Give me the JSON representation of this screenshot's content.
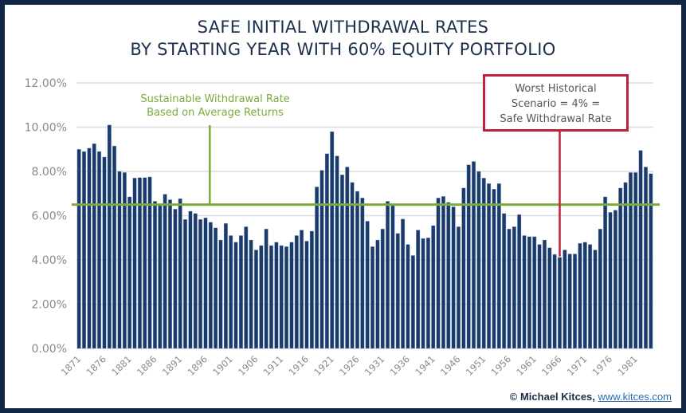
{
  "chart_data": {
    "type": "bar",
    "title": "SAFE INITIAL WITHDRAWAL RATES",
    "subtitle": "BY STARTING YEAR WITH 60% EQUITY PORTFOLIO",
    "xlabel": "",
    "ylabel": "",
    "ylim": [
      0,
      12
    ],
    "yticks": [
      0,
      2,
      4,
      6,
      8,
      10,
      12
    ],
    "ytick_labels": [
      "0.00%",
      "2.00%",
      "4.00%",
      "6.00%",
      "8.00%",
      "10.00%",
      "12.00%"
    ],
    "grid": true,
    "x_start": 1871,
    "xtick_labels": [
      "1871",
      "1876",
      "1881",
      "1886",
      "1891",
      "1896",
      "1901",
      "1906",
      "1911",
      "1916",
      "1921",
      "1926",
      "1931",
      "1936",
      "1941",
      "1946",
      "1951",
      "1956",
      "1961",
      "1966",
      "1971",
      "1976",
      "1981"
    ],
    "values": [
      9.0,
      8.9,
      9.05,
      9.25,
      8.9,
      8.65,
      10.1,
      9.15,
      8.0,
      7.95,
      6.85,
      7.7,
      7.72,
      7.72,
      7.75,
      6.65,
      6.45,
      6.97,
      6.72,
      6.3,
      6.77,
      5.83,
      6.2,
      6.1,
      5.83,
      5.9,
      5.7,
      5.45,
      4.9,
      5.65,
      5.1,
      4.8,
      5.1,
      5.5,
      4.9,
      4.45,
      4.65,
      5.4,
      4.65,
      4.8,
      4.65,
      4.6,
      4.8,
      5.1,
      5.35,
      4.85,
      5.3,
      7.3,
      8.05,
      8.8,
      9.8,
      8.7,
      7.85,
      8.2,
      7.5,
      7.1,
      6.8,
      5.75,
      4.6,
      4.9,
      5.4,
      6.65,
      6.45,
      5.2,
      5.85,
      4.7,
      4.2,
      5.35,
      4.97,
      5.0,
      5.55,
      6.8,
      6.87,
      6.6,
      6.4,
      5.5,
      7.25,
      8.3,
      8.45,
      8.0,
      7.7,
      7.45,
      7.2,
      7.45,
      6.1,
      5.4,
      5.5,
      6.05,
      5.1,
      5.05,
      5.05,
      4.7,
      4.9,
      4.55,
      4.25,
      4.12,
      4.45,
      4.27,
      4.27,
      4.75,
      4.8,
      4.7,
      4.45,
      5.4,
      6.85,
      6.15,
      6.25,
      7.25,
      7.5,
      7.95,
      7.95,
      8.95,
      8.2,
      7.9
    ],
    "reference_lines": [
      {
        "name": "Sustainable Withdrawal Rate Based on Average Returns",
        "value": 6.5,
        "color": "#7aab3b"
      }
    ],
    "annotations": [
      {
        "text": "Sustainable Withdrawal Rate Based on Average Returns",
        "points_to_year": 1897,
        "color": "#7aab3b"
      },
      {
        "text": "Worst Historical Scenario = 4% = Safe Withdrawal Rate",
        "points_to_year": 1966,
        "color": "#c0203a"
      }
    ],
    "bar_color": "#1a3a6b"
  },
  "annotations": {
    "green_line1": "Sustainable Withdrawal Rate",
    "green_line2": "Based on Average Returns",
    "red_line1": "Worst Historical",
    "red_line2": "Scenario = 4% =",
    "red_line3": "Safe Withdrawal Rate"
  },
  "credit": {
    "author": "© Michael Kitces,",
    "link": "www.kitces.com"
  }
}
